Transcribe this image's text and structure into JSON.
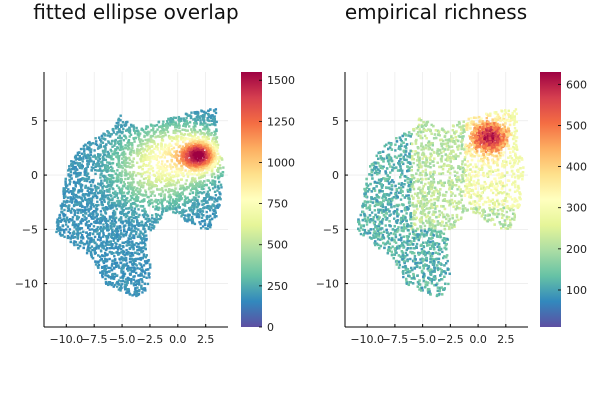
{
  "chart_data": [
    {
      "type": "scatter",
      "title": "fitted ellipse overlap",
      "xlabel": "",
      "ylabel": "",
      "xlim": [
        -12,
        4.5
      ],
      "ylim": [
        -14,
        9.5
      ],
      "xticks": [
        -10.0,
        -7.5,
        -5.0,
        -2.5,
        0.0,
        2.5
      ],
      "xtick_labels": [
        "−10.0",
        "−7.5",
        "−5.0",
        "−2.5",
        "0.0",
        "2.5"
      ],
      "yticks": [
        5,
        0,
        -5,
        -10
      ],
      "ytick_labels": [
        "5",
        "0",
        "−5",
        "−10"
      ],
      "grid": true,
      "colorbar": {
        "colormap": "Spectral (reversed)",
        "range": [
          0,
          1550
        ],
        "ticks": [
          0,
          250,
          500,
          750,
          1000,
          1250,
          1500
        ],
        "tick_labels": [
          "0",
          "250",
          "500",
          "750",
          "1000",
          "1250",
          "1500"
        ]
      },
      "hotspot": {
        "x": 2.0,
        "y": 1.8,
        "peak_value": 1500
      }
    },
    {
      "type": "scatter",
      "title": "empirical richness",
      "xlabel": "",
      "ylabel": "",
      "xlim": [
        -12,
        4.5
      ],
      "ylim": [
        -14,
        9.5
      ],
      "xticks": [
        -10.0,
        -7.5,
        -5.0,
        -2.5,
        0.0,
        2.5
      ],
      "xtick_labels": [
        "−10.0",
        "−7.5",
        "−5.0",
        "−2.5",
        "0.0",
        "2.5"
      ],
      "yticks": [
        5,
        0,
        -5,
        -10
      ],
      "ytick_labels": [
        "5",
        "0",
        "−5",
        "−10"
      ],
      "grid": true,
      "colorbar": {
        "colormap": "Spectral (reversed)",
        "range": [
          10,
          630
        ],
        "ticks": [
          100,
          200,
          300,
          400,
          500,
          600
        ],
        "tick_labels": [
          "100",
          "200",
          "300",
          "400",
          "500",
          "600"
        ]
      },
      "hotspot": {
        "x": 1.0,
        "y": 3.5,
        "peak_value": 600
      }
    }
  ]
}
